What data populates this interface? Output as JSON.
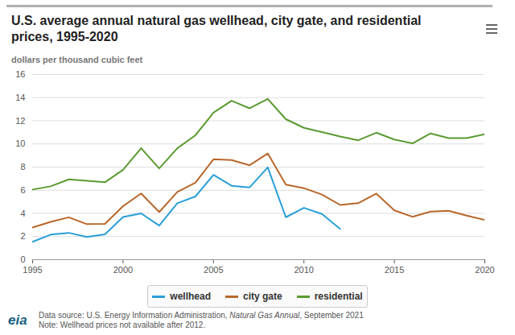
{
  "chart_data": {
    "type": "line",
    "title": "U.S. average annual natural gas wellhead, city gate, and residential prices, 1995-2020",
    "subtitle": "dollars per thousand cubic feet",
    "source": "Data source: U.S. Energy Information Administration, Natural Gas Annual, September 2021",
    "note": "Note: Wellhead prices not available after 2012.",
    "logo_text": "eia",
    "x": [
      1995,
      1996,
      1997,
      1998,
      1999,
      2000,
      2001,
      2002,
      2003,
      2004,
      2005,
      2006,
      2007,
      2008,
      2009,
      2010,
      2011,
      2012,
      2013,
      2014,
      2015,
      2016,
      2017,
      2018,
      2019,
      2020
    ],
    "series": [
      {
        "name": "wellhead",
        "color": "#2a9fd8",
        "values": [
          1.55,
          2.17,
          2.32,
          1.96,
          2.19,
          3.69,
          4.0,
          2.95,
          4.88,
          5.46,
          7.33,
          6.39,
          6.25,
          7.97,
          3.67,
          4.48,
          3.95,
          2.66,
          null,
          null,
          null,
          null,
          null,
          null,
          null,
          null
        ]
      },
      {
        "name": "city gate",
        "color": "#b8672a",
        "values": [
          2.78,
          3.27,
          3.66,
          3.07,
          3.1,
          4.62,
          5.72,
          4.12,
          5.85,
          6.65,
          8.67,
          8.61,
          8.16,
          9.18,
          6.48,
          6.18,
          5.63,
          4.73,
          4.88,
          5.71,
          4.26,
          3.71,
          4.16,
          4.23,
          3.81,
          3.43
        ]
      },
      {
        "name": "residential",
        "color": "#5b9a32",
        "values": [
          6.06,
          6.34,
          6.94,
          6.82,
          6.69,
          7.76,
          9.63,
          7.89,
          9.63,
          10.75,
          12.7,
          13.73,
          13.08,
          13.89,
          12.14,
          11.39,
          11.03,
          10.65,
          10.32,
          10.97,
          10.38,
          10.05,
          10.91,
          10.5,
          10.51,
          10.84
        ]
      }
    ],
    "xlim": [
      1995,
      2020
    ],
    "xticks": [
      1995,
      2000,
      2005,
      2010,
      2015,
      2020
    ],
    "ylim": [
      0,
      16
    ],
    "yticks": [
      0,
      2,
      4,
      6,
      8,
      10,
      12,
      14,
      16
    ],
    "grid": true,
    "legend": "bottom"
  }
}
